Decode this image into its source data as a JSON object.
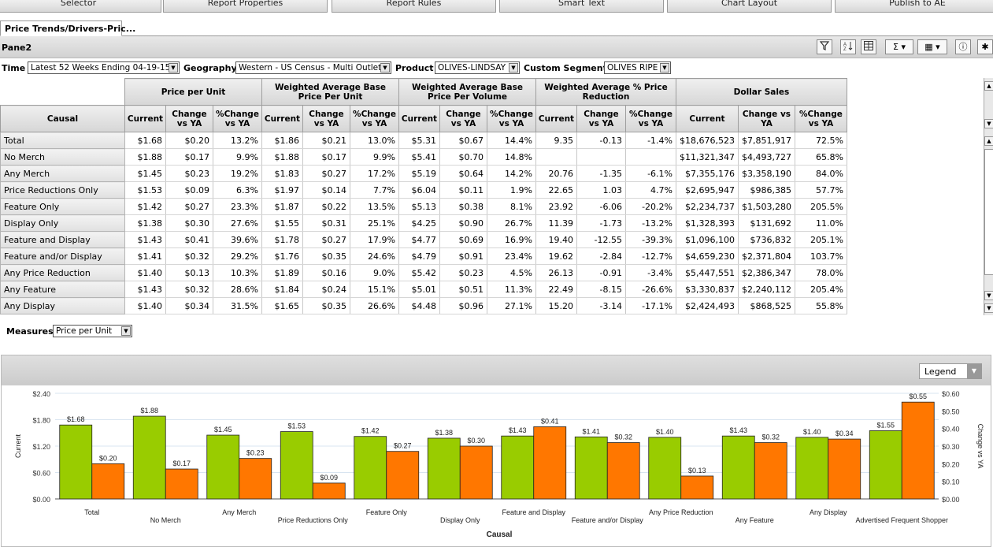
{
  "toolbar": {
    "buttons": [
      "Selector",
      "Report Properties",
      "Report Rules",
      "Smart Text",
      "Chart Layout",
      "Publish to AE"
    ]
  },
  "tab": {
    "label": "Price Trends/Drivers-Pric..."
  },
  "pane": {
    "title": "Pane2"
  },
  "filters": {
    "time_label": "Time",
    "time_value": "Latest 52 Weeks Ending 04-19-15",
    "geo_label": "Geography",
    "geo_value": "Western - US Census - Multi Outlet",
    "product_label": "Product",
    "product_value": "OLIVES-LINDSAY",
    "segment_label": "Custom Segment",
    "segment_value": "OLIVES RIPE"
  },
  "grid": {
    "row_header_title": "Causal",
    "groups": [
      {
        "label": "Price per Unit",
        "cols": [
          "Current",
          "Change vs YA",
          "%Change vs YA"
        ]
      },
      {
        "label": "Weighted Average Base Price Per Unit",
        "cols": [
          "Current",
          "Change vs YA",
          "%Change vs YA"
        ]
      },
      {
        "label": "Weighted Average Base Price Per Volume",
        "cols": [
          "Current",
          "Change vs YA",
          "%Change vs YA"
        ]
      },
      {
        "label": "Weighted Average % Price Reduction",
        "cols": [
          "Current",
          "Change vs YA",
          "%Change vs YA"
        ]
      },
      {
        "label": "Dollar Sales",
        "cols": [
          "Current",
          "Change vs YA",
          "%Change vs YA"
        ]
      }
    ],
    "rows": [
      {
        "label": "Total",
        "cells": [
          "$1.68",
          "$0.20",
          "13.2%",
          "$1.86",
          "$0.21",
          "13.0%",
          "$5.31",
          "$0.67",
          "14.4%",
          "9.35",
          "-0.13",
          "-1.4%",
          "$18,676,523",
          "$7,851,917",
          "72.5%"
        ]
      },
      {
        "label": "No Merch",
        "cells": [
          "$1.88",
          "$0.17",
          "9.9%",
          "$1.88",
          "$0.17",
          "9.9%",
          "$5.41",
          "$0.70",
          "14.8%",
          "",
          "",
          "",
          "$11,321,347",
          "$4,493,727",
          "65.8%"
        ]
      },
      {
        "label": "Any Merch",
        "cells": [
          "$1.45",
          "$0.23",
          "19.2%",
          "$1.83",
          "$0.27",
          "17.2%",
          "$5.19",
          "$0.64",
          "14.2%",
          "20.76",
          "-1.35",
          "-6.1%",
          "$7,355,176",
          "$3,358,190",
          "84.0%"
        ]
      },
      {
        "label": "Price Reductions Only",
        "cells": [
          "$1.53",
          "$0.09",
          "6.3%",
          "$1.97",
          "$0.14",
          "7.7%",
          "$6.04",
          "$0.11",
          "1.9%",
          "22.65",
          "1.03",
          "4.7%",
          "$2,695,947",
          "$986,385",
          "57.7%"
        ]
      },
      {
        "label": "Feature Only",
        "cells": [
          "$1.42",
          "$0.27",
          "23.3%",
          "$1.87",
          "$0.22",
          "13.5%",
          "$5.13",
          "$0.38",
          "8.1%",
          "23.92",
          "-6.06",
          "-20.2%",
          "$2,234,737",
          "$1,503,280",
          "205.5%"
        ]
      },
      {
        "label": "Display Only",
        "cells": [
          "$1.38",
          "$0.30",
          "27.6%",
          "$1.55",
          "$0.31",
          "25.1%",
          "$4.25",
          "$0.90",
          "26.7%",
          "11.39",
          "-1.73",
          "-13.2%",
          "$1,328,393",
          "$131,692",
          "11.0%"
        ]
      },
      {
        "label": "Feature and Display",
        "cells": [
          "$1.43",
          "$0.41",
          "39.6%",
          "$1.78",
          "$0.27",
          "17.9%",
          "$4.77",
          "$0.69",
          "16.9%",
          "19.40",
          "-12.55",
          "-39.3%",
          "$1,096,100",
          "$736,832",
          "205.1%"
        ]
      },
      {
        "label": "Feature and/or Display",
        "cells": [
          "$1.41",
          "$0.32",
          "29.2%",
          "$1.76",
          "$0.35",
          "24.6%",
          "$4.79",
          "$0.91",
          "23.4%",
          "19.62",
          "-2.84",
          "-12.7%",
          "$4,659,230",
          "$2,371,804",
          "103.7%"
        ]
      },
      {
        "label": "Any Price Reduction",
        "cells": [
          "$1.40",
          "$0.13",
          "10.3%",
          "$1.89",
          "$0.16",
          "9.0%",
          "$5.42",
          "$0.23",
          "4.5%",
          "26.13",
          "-0.91",
          "-3.4%",
          "$5,447,551",
          "$2,386,347",
          "78.0%"
        ]
      },
      {
        "label": "Any Feature",
        "cells": [
          "$1.43",
          "$0.32",
          "28.6%",
          "$1.84",
          "$0.24",
          "15.1%",
          "$5.01",
          "$0.51",
          "11.3%",
          "22.49",
          "-8.15",
          "-26.6%",
          "$3,330,837",
          "$2,240,112",
          "205.4%"
        ]
      },
      {
        "label": "Any Display",
        "cells": [
          "$1.40",
          "$0.34",
          "31.5%",
          "$1.65",
          "$0.35",
          "26.6%",
          "$4.48",
          "$0.96",
          "27.1%",
          "15.20",
          "-3.14",
          "-17.1%",
          "$2,424,493",
          "$868,525",
          "55.8%"
        ]
      }
    ]
  },
  "measures": {
    "label": "Measures",
    "value": "Price per Unit"
  },
  "legend_button": "Legend",
  "chart_data": {
    "type": "bar",
    "xlabel": "Causal",
    "ylabel": "Current",
    "y2label": "Change vs YA",
    "ylim": [
      0,
      2.4
    ],
    "y2lim": [
      0,
      0.6
    ],
    "yticks": [
      "$0.00",
      "$0.60",
      "$1.20",
      "$1.80",
      "$2.40"
    ],
    "y2ticks": [
      "$0.00",
      "$0.10",
      "$0.20",
      "$0.30",
      "$0.40",
      "$0.50",
      "$0.60"
    ],
    "categories": [
      "Total",
      "No Merch",
      "Any Merch",
      "Price Reductions Only",
      "Feature Only",
      "Display Only",
      "Feature and Display",
      "Feature and/or Display",
      "Any Price Reduction",
      "Any Feature",
      "Any Display",
      "Advertised Frequent Shopper"
    ],
    "series": [
      {
        "name": "Current",
        "axis": "left",
        "color": "#99cc00",
        "values": [
          1.68,
          1.88,
          1.45,
          1.53,
          1.42,
          1.38,
          1.43,
          1.41,
          1.4,
          1.43,
          1.4,
          1.55
        ],
        "labels": [
          "$1.68",
          "$1.88",
          "$1.45",
          "$1.53",
          "$1.42",
          "$1.38",
          "$1.43",
          "$1.41",
          "$1.40",
          "$1.43",
          "$1.40",
          "$1.55"
        ]
      },
      {
        "name": "Change vs YA",
        "axis": "right",
        "color": "#ff7700",
        "values": [
          0.2,
          0.17,
          0.23,
          0.09,
          0.27,
          0.3,
          0.41,
          0.32,
          0.13,
          0.32,
          0.34,
          0.55
        ],
        "labels": [
          "$0.20",
          "$0.17",
          "$0.23",
          "$0.09",
          "$0.27",
          "$0.30",
          "$0.41",
          "$0.32",
          "$0.13",
          "$0.32",
          "$0.34",
          "$0.55"
        ]
      }
    ],
    "grid": true
  }
}
